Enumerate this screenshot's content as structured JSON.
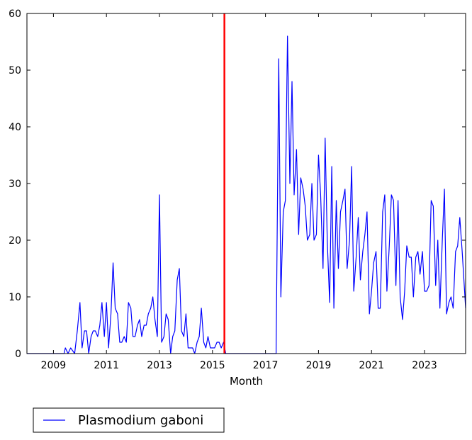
{
  "chart_data": {
    "type": "line",
    "title": "",
    "xlabel": "Month",
    "ylabel": "",
    "xlim": [
      2008.0,
      2024.55
    ],
    "ylim": [
      0,
      60
    ],
    "x_ticks": [
      2009,
      2011,
      2013,
      2015,
      2017,
      2019,
      2021,
      2023
    ],
    "x_tick_labels": [
      "2009",
      "2011",
      "2013",
      "2015",
      "2017",
      "2019",
      "2021",
      "2023"
    ],
    "y_ticks": [
      0,
      10,
      20,
      30,
      40,
      50,
      60
    ],
    "y_tick_labels": [
      "0",
      "10",
      "20",
      "30",
      "40",
      "50",
      "60"
    ],
    "grid": false,
    "legend_position": "bottom-left, below plot",
    "vertical_marker": {
      "x": 2015.45,
      "color": "#ff0000"
    },
    "series": [
      {
        "name": "Plasmodium gaboni",
        "color": "#0000ff",
        "points": [
          [
            2008.0,
            0
          ],
          [
            2008.5,
            0
          ],
          [
            2009.0,
            0
          ],
          [
            2009.3,
            0
          ],
          [
            2009.4,
            0
          ],
          [
            2009.45,
            1
          ],
          [
            2009.55,
            0
          ],
          [
            2009.65,
            1
          ],
          [
            2009.8,
            0
          ],
          [
            2009.9,
            4
          ],
          [
            2010.0,
            9
          ],
          [
            2010.08,
            1
          ],
          [
            2010.17,
            4
          ],
          [
            2010.25,
            4
          ],
          [
            2010.33,
            0
          ],
          [
            2010.42,
            3
          ],
          [
            2010.5,
            4
          ],
          [
            2010.58,
            4
          ],
          [
            2010.67,
            3
          ],
          [
            2010.75,
            5
          ],
          [
            2010.83,
            9
          ],
          [
            2010.92,
            3
          ],
          [
            2011.0,
            9
          ],
          [
            2011.08,
            1
          ],
          [
            2011.17,
            7
          ],
          [
            2011.25,
            16
          ],
          [
            2011.33,
            8
          ],
          [
            2011.42,
            7
          ],
          [
            2011.5,
            2
          ],
          [
            2011.58,
            2
          ],
          [
            2011.67,
            3
          ],
          [
            2011.75,
            2
          ],
          [
            2011.83,
            9
          ],
          [
            2011.92,
            8
          ],
          [
            2012.0,
            3
          ],
          [
            2012.08,
            3
          ],
          [
            2012.17,
            5
          ],
          [
            2012.25,
            6
          ],
          [
            2012.33,
            3
          ],
          [
            2012.42,
            5
          ],
          [
            2012.5,
            5
          ],
          [
            2012.58,
            7
          ],
          [
            2012.67,
            8
          ],
          [
            2012.75,
            10
          ],
          [
            2012.83,
            6
          ],
          [
            2012.92,
            3
          ],
          [
            2013.0,
            28
          ],
          [
            2013.08,
            2
          ],
          [
            2013.17,
            3
          ],
          [
            2013.25,
            7
          ],
          [
            2013.33,
            6
          ],
          [
            2013.42,
            0
          ],
          [
            2013.5,
            3
          ],
          [
            2013.58,
            4
          ],
          [
            2013.67,
            13
          ],
          [
            2013.75,
            15
          ],
          [
            2013.83,
            4
          ],
          [
            2013.92,
            3
          ],
          [
            2014.0,
            7
          ],
          [
            2014.08,
            1
          ],
          [
            2014.17,
            1
          ],
          [
            2014.25,
            1
          ],
          [
            2014.33,
            0
          ],
          [
            2014.42,
            2
          ],
          [
            2014.5,
            3
          ],
          [
            2014.58,
            8
          ],
          [
            2014.67,
            2
          ],
          [
            2014.75,
            1
          ],
          [
            2014.83,
            3
          ],
          [
            2014.92,
            1
          ],
          [
            2015.0,
            1
          ],
          [
            2015.08,
            1
          ],
          [
            2015.17,
            2
          ],
          [
            2015.25,
            2
          ],
          [
            2015.33,
            1
          ],
          [
            2015.42,
            2
          ],
          [
            2015.5,
            0
          ],
          [
            2016.0,
            0
          ],
          [
            2016.5,
            0
          ],
          [
            2017.0,
            0
          ],
          [
            2017.3,
            0
          ],
          [
            2017.4,
            0
          ],
          [
            2017.5,
            52
          ],
          [
            2017.58,
            10
          ],
          [
            2017.67,
            25
          ],
          [
            2017.75,
            27
          ],
          [
            2017.83,
            56
          ],
          [
            2017.92,
            30
          ],
          [
            2018.0,
            48
          ],
          [
            2018.08,
            28
          ],
          [
            2018.17,
            36
          ],
          [
            2018.25,
            21
          ],
          [
            2018.33,
            31
          ],
          [
            2018.42,
            29
          ],
          [
            2018.5,
            26
          ],
          [
            2018.58,
            20
          ],
          [
            2018.67,
            21
          ],
          [
            2018.75,
            30
          ],
          [
            2018.83,
            20
          ],
          [
            2018.92,
            21
          ],
          [
            2019.0,
            35
          ],
          [
            2019.08,
            28
          ],
          [
            2019.17,
            15
          ],
          [
            2019.25,
            38
          ],
          [
            2019.33,
            20
          ],
          [
            2019.42,
            9
          ],
          [
            2019.5,
            33
          ],
          [
            2019.58,
            8
          ],
          [
            2019.67,
            27
          ],
          [
            2019.75,
            15
          ],
          [
            2019.83,
            25
          ],
          [
            2019.92,
            27
          ],
          [
            2020.0,
            29
          ],
          [
            2020.08,
            15
          ],
          [
            2020.17,
            20
          ],
          [
            2020.25,
            33
          ],
          [
            2020.33,
            11
          ],
          [
            2020.42,
            17
          ],
          [
            2020.5,
            24
          ],
          [
            2020.58,
            13
          ],
          [
            2020.67,
            18
          ],
          [
            2020.75,
            21
          ],
          [
            2020.83,
            25
          ],
          [
            2020.92,
            7
          ],
          [
            2021.0,
            11
          ],
          [
            2021.08,
            16
          ],
          [
            2021.17,
            18
          ],
          [
            2021.25,
            8
          ],
          [
            2021.33,
            8
          ],
          [
            2021.42,
            25
          ],
          [
            2021.5,
            28
          ],
          [
            2021.58,
            11
          ],
          [
            2021.67,
            19
          ],
          [
            2021.75,
            28
          ],
          [
            2021.83,
            27
          ],
          [
            2021.92,
            12
          ],
          [
            2022.0,
            27
          ],
          [
            2022.08,
            10
          ],
          [
            2022.17,
            6
          ],
          [
            2022.25,
            11
          ],
          [
            2022.33,
            19
          ],
          [
            2022.42,
            17
          ],
          [
            2022.5,
            17
          ],
          [
            2022.58,
            10
          ],
          [
            2022.67,
            17
          ],
          [
            2022.75,
            18
          ],
          [
            2022.83,
            14
          ],
          [
            2022.92,
            18
          ],
          [
            2023.0,
            11
          ],
          [
            2023.08,
            11
          ],
          [
            2023.17,
            12
          ],
          [
            2023.25,
            27
          ],
          [
            2023.33,
            26
          ],
          [
            2023.42,
            12
          ],
          [
            2023.5,
            20
          ],
          [
            2023.58,
            8
          ],
          [
            2023.67,
            20
          ],
          [
            2023.75,
            29
          ],
          [
            2023.83,
            7
          ],
          [
            2023.92,
            9
          ],
          [
            2024.0,
            10
          ],
          [
            2024.08,
            8
          ],
          [
            2024.17,
            18
          ],
          [
            2024.25,
            19
          ],
          [
            2024.33,
            24
          ],
          [
            2024.42,
            18
          ],
          [
            2024.55,
            8
          ]
        ]
      }
    ]
  }
}
